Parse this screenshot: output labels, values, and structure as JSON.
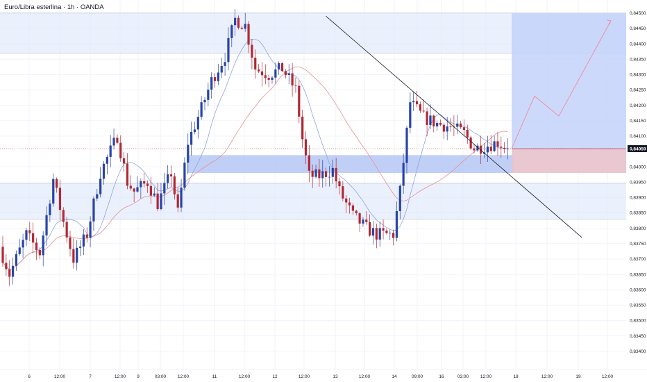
{
  "chart_data": {
    "type": "candlestick",
    "title": "Euro/Libra esterlina · 1h · OANDA",
    "instrument": "Euro/Libra esterlina",
    "timeframe": "1h",
    "broker": "OANDA",
    "last_price": 0.84059,
    "last_price_label": "0,84059",
    "ylim": [
      0.8337,
      0.8452
    ],
    "y_ticks": [
      {
        "value": 0.845,
        "label": "0,84500"
      },
      {
        "value": 0.8445,
        "label": "0,84450"
      },
      {
        "value": 0.844,
        "label": "0,84400"
      },
      {
        "value": 0.8435,
        "label": "0,84350"
      },
      {
        "value": 0.843,
        "label": "0,84300"
      },
      {
        "value": 0.8425,
        "label": "0,84250"
      },
      {
        "value": 0.842,
        "label": "0,84200"
      },
      {
        "value": 0.8415,
        "label": "0,84150"
      },
      {
        "value": 0.841,
        "label": "0,84100"
      },
      {
        "value": 0.84,
        "label": "0,84000"
      },
      {
        "value": 0.8395,
        "label": "0,83950"
      },
      {
        "value": 0.839,
        "label": "0,83900"
      },
      {
        "value": 0.8385,
        "label": "0,83850"
      },
      {
        "value": 0.838,
        "label": "0,83800"
      },
      {
        "value": 0.8375,
        "label": "0,83750"
      },
      {
        "value": 0.837,
        "label": "0,83700"
      },
      {
        "value": 0.8365,
        "label": "0,83650"
      },
      {
        "value": 0.836,
        "label": "0,83600"
      },
      {
        "value": 0.8355,
        "label": "0,83550"
      },
      {
        "value": 0.835,
        "label": "0,83500"
      },
      {
        "value": 0.8345,
        "label": "0,83450"
      },
      {
        "value": 0.834,
        "label": "0,83400"
      }
    ],
    "x_ticks": [
      "6",
      "12:00",
      "7",
      "12:00",
      "9",
      "03:00",
      "12:00",
      "11",
      "12:00",
      "12",
      "12:00",
      "13",
      "12:00",
      "14",
      "09:00",
      "16",
      "03:00",
      "12:00",
      "18",
      "12:00",
      "19",
      "12:00"
    ],
    "candle_count": 151,
    "zones": [
      {
        "name": "supply-zone",
        "from": 0.8437,
        "to": 0.845
      },
      {
        "name": "demand-zone",
        "from": 0.8383,
        "to": 0.83945
      },
      {
        "name": "key-level-zone",
        "from": 0.8398,
        "to": 0.84038
      }
    ],
    "trendline": {
      "from": {
        "candle": 96,
        "price": 0.8449
      },
      "to": {
        "candle": 172,
        "price": 0.8377
      }
    },
    "position": {
      "type": "long",
      "entry": 0.84059,
      "target": 0.845,
      "stop": 0.8398
    },
    "projection_path": [
      0.84059,
      0.8423,
      0.84165,
      0.84475
    ],
    "colors": {
      "bull": "#2744a8",
      "bear": "#b22833",
      "ma_fast": "#8fa4e0",
      "ma_slow": "#e89090",
      "zone": "#dde6fb",
      "key_zone": "#b5c7f5",
      "profit": "#c3d2fa",
      "loss": "#e8c2cd",
      "projection": "#f28a9a",
      "price_tag": "#131722"
    }
  }
}
